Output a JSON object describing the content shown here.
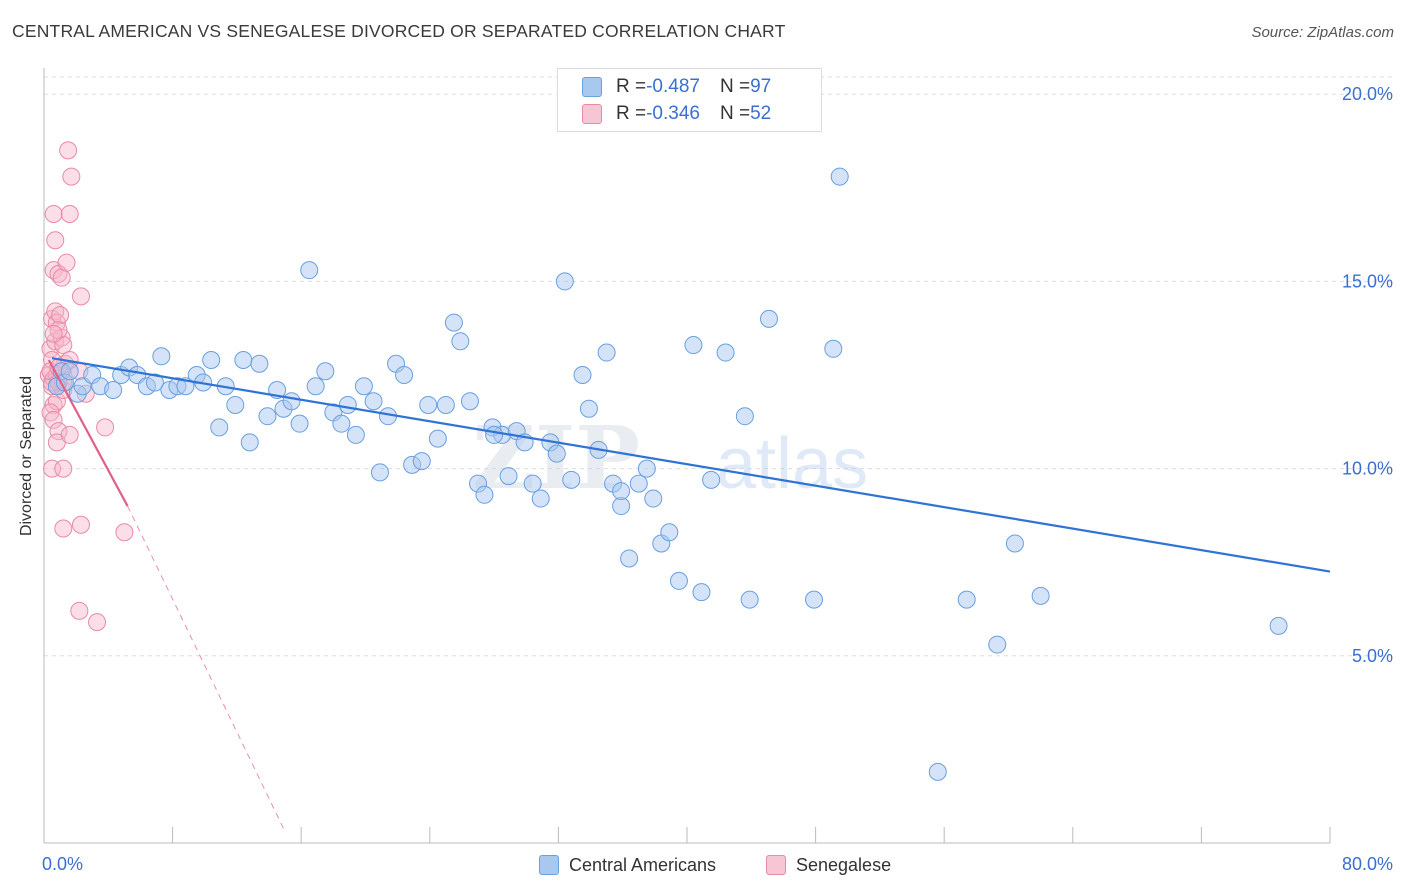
{
  "title": "CENTRAL AMERICAN VS SENEGALESE DIVORCED OR SEPARATED CORRELATION CHART",
  "source": "Source: ZipAtlas.com",
  "watermark": {
    "zip": "ZIP",
    "atlas": "atlas"
  },
  "legend": {
    "rows": [
      {
        "r_label": "R = ",
        "r_value": "-0.487",
        "n_label": "N = ",
        "n_value": "97",
        "color": "#a9c8f0"
      },
      {
        "r_label": "R = ",
        "r_value": "-0.346",
        "n_label": "N = ",
        "n_value": "52",
        "color": "#f7b6c9"
      }
    ]
  },
  "bottom_legend": [
    {
      "label": "Central Americans",
      "color": "#a9c8f0"
    },
    {
      "label": "Senegalese",
      "color": "#f7b6c9"
    }
  ],
  "colors": {
    "blue_fill": "#a9c8f0",
    "blue_stroke": "#6a9fe0",
    "blue_line": "#2f73d6",
    "pink_fill": "#f7b6c9",
    "pink_stroke": "#e98aa8",
    "pink_line": "#e0608a",
    "tick_label": "#3a6fd1",
    "grid": "#dddddd"
  },
  "chart_data": {
    "type": "scatter",
    "title": "CENTRAL AMERICAN VS SENEGALESE DIVORCED OR SEPARATED CORRELATION CHART",
    "xlabel": "",
    "ylabel": "Divorced or Separated",
    "xlim": [
      0,
      80
    ],
    "ylim": [
      0,
      20.7
    ],
    "x_tick_labels": [
      "0.0%",
      "80.0%"
    ],
    "y_ticks": [
      5,
      10,
      15,
      20
    ],
    "y_tick_labels": [
      "5.0%",
      "10.0%",
      "15.0%",
      "20.0%"
    ],
    "grid": true,
    "series": [
      {
        "name": "Central Americans",
        "r": -0.487,
        "n": 97,
        "trend": {
          "x": [
            0.5,
            80
          ],
          "y": [
            12.95,
            7.25
          ]
        },
        "points": [
          [
            0.8,
            12.2
          ],
          [
            1.1,
            12.6
          ],
          [
            1.3,
            12.3
          ],
          [
            1.6,
            12.6
          ],
          [
            2.1,
            12.0
          ],
          [
            2.4,
            12.2
          ],
          [
            3.0,
            12.5
          ],
          [
            3.5,
            12.2
          ],
          [
            4.3,
            12.1
          ],
          [
            4.8,
            12.5
          ],
          [
            5.3,
            12.7
          ],
          [
            5.8,
            12.5
          ],
          [
            6.4,
            12.2
          ],
          [
            6.9,
            12.3
          ],
          [
            7.3,
            13.0
          ],
          [
            7.8,
            12.1
          ],
          [
            8.3,
            12.2
          ],
          [
            8.8,
            12.2
          ],
          [
            9.5,
            12.5
          ],
          [
            9.9,
            12.3
          ],
          [
            10.4,
            12.9
          ],
          [
            10.9,
            11.1
          ],
          [
            11.3,
            12.2
          ],
          [
            11.9,
            11.7
          ],
          [
            12.4,
            12.9
          ],
          [
            12.8,
            10.7
          ],
          [
            13.4,
            12.8
          ],
          [
            13.9,
            11.4
          ],
          [
            14.5,
            12.1
          ],
          [
            14.9,
            11.6
          ],
          [
            15.4,
            11.8
          ],
          [
            15.9,
            11.2
          ],
          [
            16.5,
            15.3
          ],
          [
            16.9,
            12.2
          ],
          [
            17.5,
            12.6
          ],
          [
            18.0,
            11.5
          ],
          [
            18.5,
            11.2
          ],
          [
            18.9,
            11.7
          ],
          [
            19.4,
            10.9
          ],
          [
            19.9,
            12.2
          ],
          [
            20.5,
            11.8
          ],
          [
            20.9,
            9.9
          ],
          [
            21.4,
            11.4
          ],
          [
            21.9,
            12.8
          ],
          [
            22.4,
            12.5
          ],
          [
            22.9,
            10.1
          ],
          [
            23.5,
            10.2
          ],
          [
            23.9,
            11.7
          ],
          [
            24.5,
            10.8
          ],
          [
            25.0,
            11.7
          ],
          [
            25.5,
            13.9
          ],
          [
            25.9,
            13.4
          ],
          [
            26.5,
            11.8
          ],
          [
            27.0,
            9.6
          ],
          [
            27.4,
            9.3
          ],
          [
            27.9,
            11.1
          ],
          [
            28.5,
            10.9
          ],
          [
            28.9,
            9.8
          ],
          [
            29.4,
            11.0
          ],
          [
            29.9,
            10.7
          ],
          [
            30.4,
            9.6
          ],
          [
            30.9,
            9.2
          ],
          [
            31.5,
            10.7
          ],
          [
            31.9,
            10.4
          ],
          [
            32.4,
            15.0
          ],
          [
            32.8,
            9.7
          ],
          [
            33.5,
            12.5
          ],
          [
            33.9,
            11.6
          ],
          [
            34.5,
            10.5
          ],
          [
            35.0,
            13.1
          ],
          [
            35.4,
            9.6
          ],
          [
            35.9,
            9.0
          ],
          [
            36.4,
            7.6
          ],
          [
            37.0,
            9.6
          ],
          [
            37.5,
            10.0
          ],
          [
            37.9,
            9.2
          ],
          [
            38.4,
            8.0
          ],
          [
            38.9,
            8.3
          ],
          [
            39.5,
            7.0
          ],
          [
            40.4,
            13.3
          ],
          [
            40.9,
            6.7
          ],
          [
            41.5,
            9.7
          ],
          [
            42.4,
            13.1
          ],
          [
            43.6,
            11.4
          ],
          [
            43.9,
            6.5
          ],
          [
            45.1,
            14.0
          ],
          [
            47.9,
            6.5
          ],
          [
            49.1,
            13.2
          ],
          [
            49.5,
            17.8
          ],
          [
            55.6,
            1.9
          ],
          [
            57.4,
            6.5
          ],
          [
            59.3,
            5.3
          ],
          [
            60.4,
            8.0
          ],
          [
            62.0,
            6.6
          ],
          [
            76.8,
            5.8
          ],
          [
            35.9,
            9.4
          ],
          [
            28.0,
            10.9
          ]
        ]
      },
      {
        "name": "Senegalese",
        "r": -0.346,
        "n": 52,
        "trend_solid": {
          "x": [
            0.3,
            5.2
          ],
          "y": [
            12.9,
            9.0
          ]
        },
        "trend_dashed": {
          "x": [
            5.2,
            15.0
          ],
          "y": [
            9.0,
            0.3
          ]
        },
        "points": [
          [
            0.3,
            12.5
          ],
          [
            0.4,
            13.2
          ],
          [
            0.5,
            12.2
          ],
          [
            0.6,
            11.7
          ],
          [
            0.7,
            13.4
          ],
          [
            0.8,
            11.8
          ],
          [
            0.9,
            12.4
          ],
          [
            1.0,
            12.6
          ],
          [
            1.1,
            13.5
          ],
          [
            1.2,
            12.1
          ],
          [
            1.3,
            12.8
          ],
          [
            0.5,
            14.0
          ],
          [
            0.7,
            14.2
          ],
          [
            0.8,
            13.9
          ],
          [
            1.0,
            14.1
          ],
          [
            1.2,
            13.3
          ],
          [
            0.6,
            15.3
          ],
          [
            0.9,
            15.2
          ],
          [
            1.1,
            15.1
          ],
          [
            1.4,
            15.5
          ],
          [
            0.7,
            16.1
          ],
          [
            0.6,
            16.8
          ],
          [
            1.6,
            16.8
          ],
          [
            1.7,
            17.8
          ],
          [
            1.5,
            18.5
          ],
          [
            2.3,
            14.6
          ],
          [
            0.4,
            11.5
          ],
          [
            0.6,
            11.3
          ],
          [
            0.9,
            11.0
          ],
          [
            0.8,
            10.7
          ],
          [
            1.6,
            10.9
          ],
          [
            0.5,
            10.0
          ],
          [
            1.2,
            10.0
          ],
          [
            2.6,
            12.0
          ],
          [
            2.2,
            12.6
          ],
          [
            3.8,
            11.1
          ],
          [
            1.2,
            8.4
          ],
          [
            2.3,
            8.5
          ],
          [
            5.0,
            8.3
          ],
          [
            2.2,
            6.2
          ],
          [
            3.3,
            5.9
          ],
          [
            0.5,
            12.9
          ],
          [
            0.6,
            12.4
          ],
          [
            0.5,
            12.3
          ],
          [
            0.8,
            12.5
          ],
          [
            0.4,
            12.6
          ],
          [
            1.2,
            12.3
          ],
          [
            0.9,
            12.7
          ],
          [
            1.6,
            12.9
          ],
          [
            0.9,
            13.7
          ],
          [
            0.6,
            13.6
          ],
          [
            0.9,
            12.3
          ]
        ]
      }
    ]
  }
}
